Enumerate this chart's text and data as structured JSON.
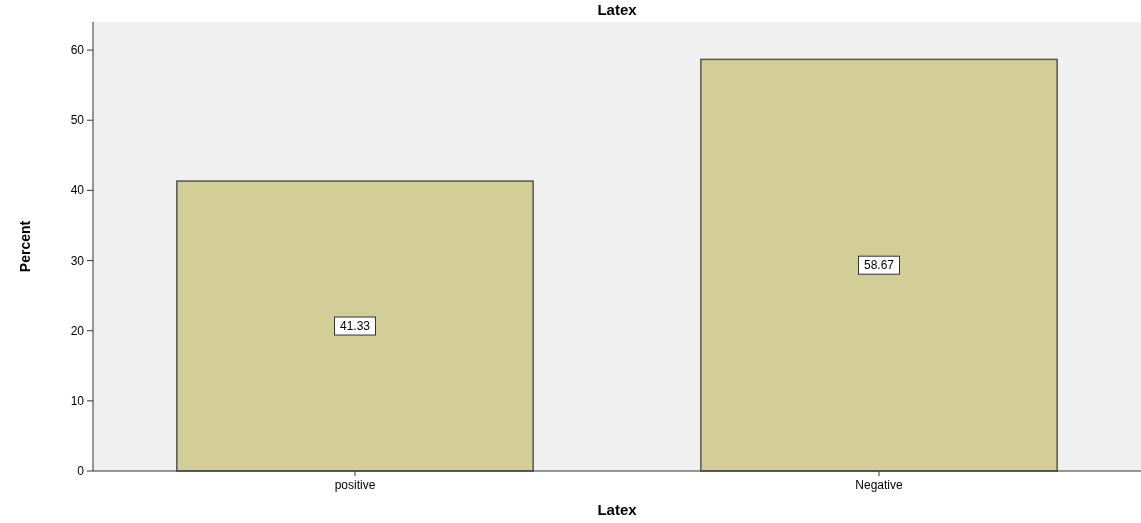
{
  "chart_data": {
    "type": "bar",
    "title": "Latex",
    "xlabel": "Latex",
    "ylabel": "Percent",
    "categories": [
      "positive",
      "Negative"
    ],
    "values": [
      41.33,
      58.67
    ],
    "color": "#d3ce98",
    "ylim": [
      0,
      64
    ],
    "yticks": [
      0,
      10,
      20,
      30,
      40,
      50,
      60
    ],
    "data_labels": true
  }
}
